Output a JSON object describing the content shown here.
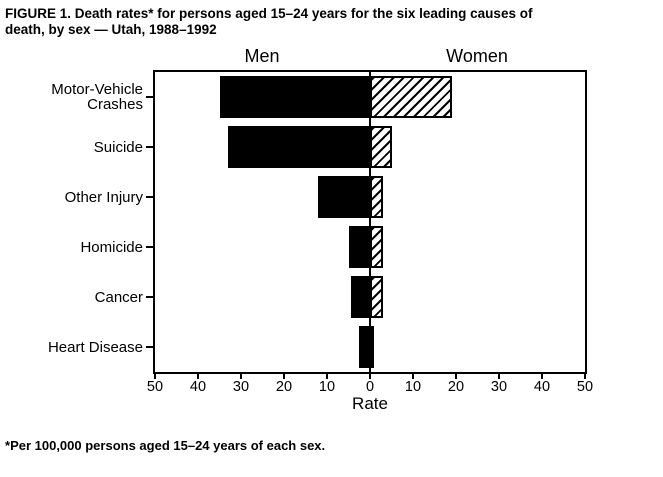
{
  "figure": {
    "title_line1": "FIGURE 1. Death rates* for persons aged 15–24 years for the six leading causes of",
    "title_line2": "death, by sex — Utah, 1988–1992",
    "footnote_marker": "*",
    "footnote_text": "Per 100,000 persons aged 15–24 years of each sex."
  },
  "chart_data": {
    "type": "bar",
    "subtype": "diverging-horizontal-pyramid",
    "title": "Death rates for persons aged 15-24 years for the six leading causes of death, by sex — Utah, 1988–1992",
    "xlabel": "Rate",
    "axis_max": 50,
    "axis_range_each_side": [
      0,
      50
    ],
    "x_ticks": [
      50,
      40,
      30,
      20,
      10,
      0,
      10,
      20,
      30,
      40,
      50
    ],
    "grid": false,
    "categories": [
      "Motor-Vehicle Crashes",
      "Suicide",
      "Other Injury",
      "Homicide",
      "Cancer",
      "Heart Disease"
    ],
    "series": [
      {
        "name": "Men",
        "side": "left",
        "fill": "#000000",
        "values": [
          35,
          33,
          12,
          5,
          4.5,
          2.5
        ]
      },
      {
        "name": "Women",
        "side": "right",
        "fill": "diagonal-hatch",
        "values": [
          19,
          5,
          3,
          3,
          3,
          1
        ]
      }
    ],
    "colors": {
      "frame": "#000000",
      "background": "#ffffff",
      "men_fill": "#000000",
      "women_hatch": "#000000"
    }
  }
}
